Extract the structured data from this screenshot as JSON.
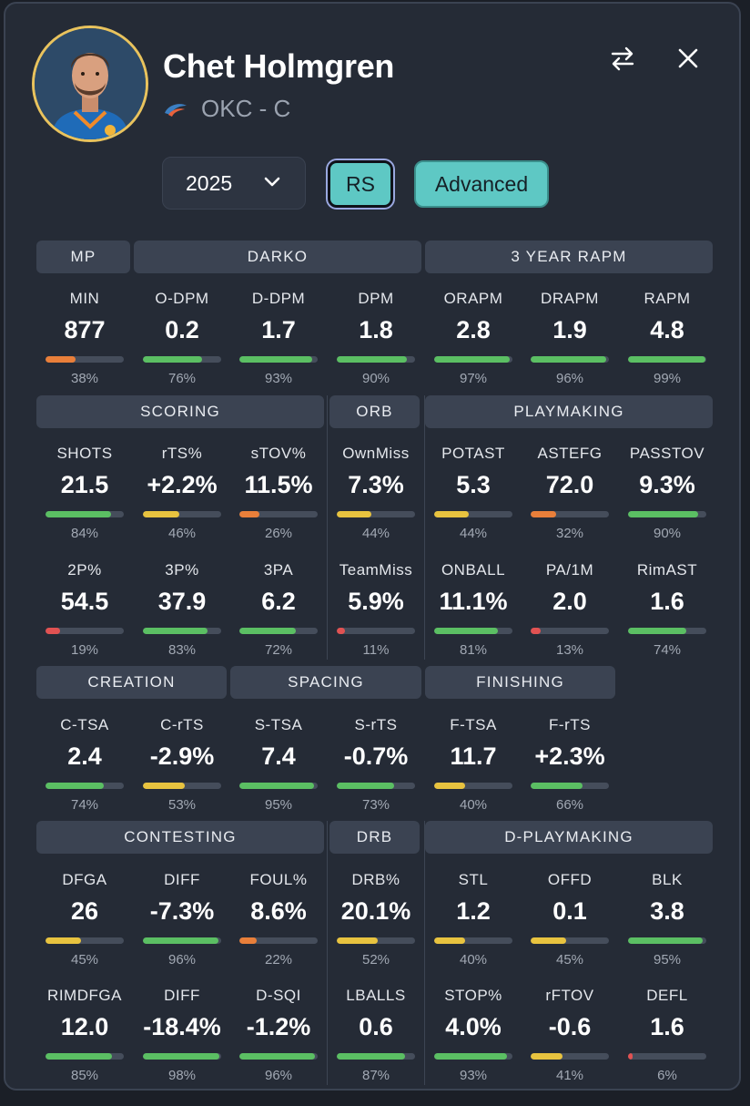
{
  "player": {
    "name": "Chet Holmgren",
    "team_position": "OKC - C"
  },
  "controls": {
    "season": "2025",
    "season_type": "RS",
    "view_mode": "Advanced"
  },
  "colors": {
    "high": "#5bbf63",
    "mid": "#e8c33f",
    "low_mid": "#e97f3a",
    "low": "#e15252"
  },
  "sections": [
    {
      "key": "mp",
      "title": "MP"
    },
    {
      "key": "darko",
      "title": "DARKO"
    },
    {
      "key": "rapm",
      "title": "3 YEAR RAPM"
    },
    {
      "key": "scoring",
      "title": "SCORING"
    },
    {
      "key": "orb",
      "title": "ORB"
    },
    {
      "key": "playmaking",
      "title": "PLAYMAKING"
    },
    {
      "key": "creation",
      "title": "CREATION"
    },
    {
      "key": "spacing",
      "title": "SPACING"
    },
    {
      "key": "finishing",
      "title": "FINISHING"
    },
    {
      "key": "contesting",
      "title": "CONTESTING"
    },
    {
      "key": "drb",
      "title": "DRB"
    },
    {
      "key": "dplaymaking",
      "title": "D-PLAYMAKING"
    }
  ],
  "stats": [
    {
      "label": "MIN",
      "value": "877",
      "pct": 38,
      "color": "low_mid"
    },
    {
      "label": "O-DPM",
      "value": "0.2",
      "pct": 76,
      "color": "high"
    },
    {
      "label": "D-DPM",
      "value": "1.7",
      "pct": 93,
      "color": "high"
    },
    {
      "label": "DPM",
      "value": "1.8",
      "pct": 90,
      "color": "high"
    },
    {
      "label": "ORAPM",
      "value": "2.8",
      "pct": 97,
      "color": "high"
    },
    {
      "label": "DRAPM",
      "value": "1.9",
      "pct": 96,
      "color": "high"
    },
    {
      "label": "RAPM",
      "value": "4.8",
      "pct": 99,
      "color": "high"
    },
    {
      "label": "SHOTS",
      "value": "21.5",
      "pct": 84,
      "color": "high"
    },
    {
      "label": "rTS%",
      "value": "+2.2%",
      "pct": 46,
      "color": "mid"
    },
    {
      "label": "sTOV%",
      "value": "11.5%",
      "pct": 26,
      "color": "low_mid"
    },
    {
      "label": "OwnMiss",
      "value": "7.3%",
      "pct": 44,
      "color": "mid"
    },
    {
      "label": "POTAST",
      "value": "5.3",
      "pct": 44,
      "color": "mid"
    },
    {
      "label": "ASTEFG",
      "value": "72.0",
      "pct": 32,
      "color": "low_mid"
    },
    {
      "label": "PASSTOV",
      "value": "9.3%",
      "pct": 90,
      "color": "high"
    },
    {
      "label": "2P%",
      "value": "54.5",
      "pct": 19,
      "color": "low"
    },
    {
      "label": "3P%",
      "value": "37.9",
      "pct": 83,
      "color": "high"
    },
    {
      "label": "3PA",
      "value": "6.2",
      "pct": 72,
      "color": "high"
    },
    {
      "label": "TeamMiss",
      "value": "5.9%",
      "pct": 11,
      "color": "low"
    },
    {
      "label": "ONBALL",
      "value": "11.1%",
      "pct": 81,
      "color": "high"
    },
    {
      "label": "PA/1M",
      "value": "2.0",
      "pct": 13,
      "color": "low"
    },
    {
      "label": "RimAST",
      "value": "1.6",
      "pct": 74,
      "color": "high"
    },
    {
      "label": "C-TSA",
      "value": "2.4",
      "pct": 74,
      "color": "high"
    },
    {
      "label": "C-rTS",
      "value": "-2.9%",
      "pct": 53,
      "color": "mid"
    },
    {
      "label": "S-TSA",
      "value": "7.4",
      "pct": 95,
      "color": "high"
    },
    {
      "label": "S-rTS",
      "value": "-0.7%",
      "pct": 73,
      "color": "high"
    },
    {
      "label": "F-TSA",
      "value": "11.7",
      "pct": 40,
      "color": "mid"
    },
    {
      "label": "F-rTS",
      "value": "+2.3%",
      "pct": 66,
      "color": "high"
    },
    {
      "label": "DFGA",
      "value": "26",
      "pct": 45,
      "color": "mid"
    },
    {
      "label": "DIFF",
      "value": "-7.3%",
      "pct": 96,
      "color": "high"
    },
    {
      "label": "FOUL%",
      "value": "8.6%",
      "pct": 22,
      "color": "low_mid"
    },
    {
      "label": "DRB%",
      "value": "20.1%",
      "pct": 52,
      "color": "mid"
    },
    {
      "label": "STL",
      "value": "1.2",
      "pct": 40,
      "color": "mid"
    },
    {
      "label": "OFFD",
      "value": "0.1",
      "pct": 45,
      "color": "mid"
    },
    {
      "label": "BLK",
      "value": "3.8",
      "pct": 95,
      "color": "high"
    },
    {
      "label": "RIMDFGA",
      "value": "12.0",
      "pct": 85,
      "color": "high"
    },
    {
      "label": "DIFF",
      "value": "-18.4%",
      "pct": 98,
      "color": "high"
    },
    {
      "label": "D-SQI",
      "value": "-1.2%",
      "pct": 96,
      "color": "high"
    },
    {
      "label": "LBALLS",
      "value": "0.6",
      "pct": 87,
      "color": "high"
    },
    {
      "label": "STOP%",
      "value": "4.0%",
      "pct": 93,
      "color": "high"
    },
    {
      "label": "rFTOV",
      "value": "-0.6",
      "pct": 41,
      "color": "mid"
    },
    {
      "label": "DEFL",
      "value": "1.6",
      "pct": 6,
      "color": "low"
    }
  ]
}
